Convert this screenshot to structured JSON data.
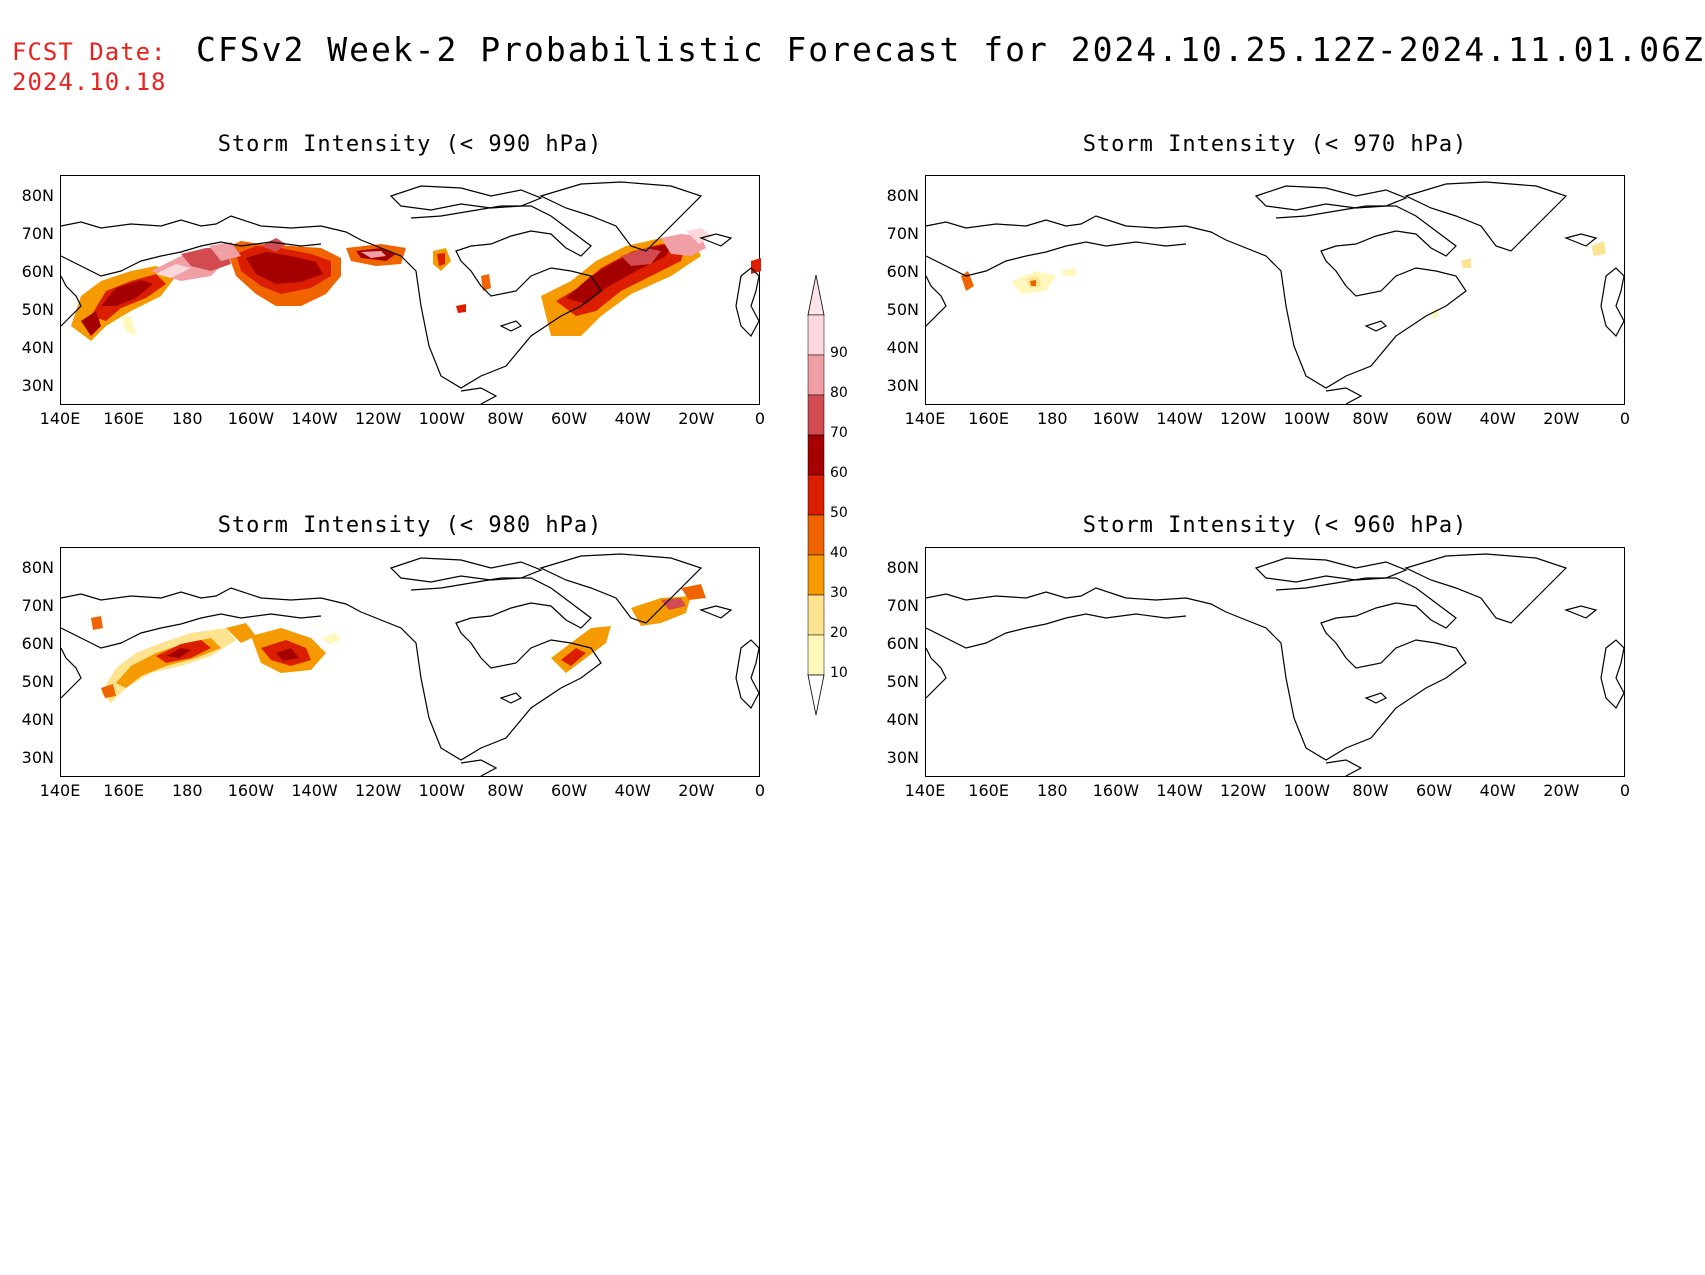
{
  "header": {
    "fcst_label": "FCST Date:",
    "fcst_date": "2024.10.18",
    "title": "CFSv2 Week-2 Probabilistic Forecast for 2024.10.25.12Z-2024.11.01.06Z"
  },
  "axes": {
    "lat_labels": [
      "80N",
      "70N",
      "60N",
      "50N",
      "40N",
      "30N"
    ],
    "lon_labels": [
      "140E",
      "160E",
      "180",
      "160W",
      "140W",
      "120W",
      "100W",
      "80W",
      "60W",
      "40W",
      "20W",
      "0"
    ]
  },
  "colorbar": {
    "levels": [
      "10",
      "20",
      "30",
      "40",
      "50",
      "60",
      "70",
      "80",
      "90"
    ],
    "colors": [
      "#fff7bc",
      "#fee391",
      "#f59a00",
      "#f06400",
      "#dc1e00",
      "#a50000",
      "#d24b50",
      "#f0a0a5",
      "#fcd7dc"
    ]
  },
  "panels": [
    {
      "id": "p990",
      "title": "Storm Intensity (< 990 hPa)"
    },
    {
      "id": "p970",
      "title": "Storm Intensity (< 970 hPa)"
    },
    {
      "id": "p980",
      "title": "Storm Intensity (< 980 hPa)"
    },
    {
      "id": "p960",
      "title": "Storm Intensity (< 960 hPa)"
    }
  ]
}
